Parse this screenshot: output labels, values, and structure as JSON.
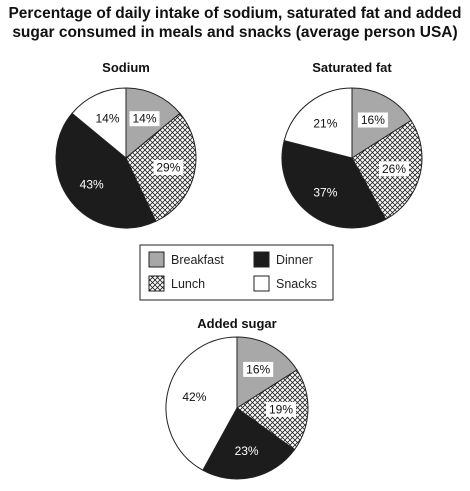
{
  "title_line1": "Percentage of daily intake of sodium, saturated fat and added",
  "title_line2": "sugar consumed in meals and snacks (average person USA)",
  "legend": [
    {
      "label": "Breakfast",
      "fill": "gray"
    },
    {
      "label": "Dinner",
      "fill": "black"
    },
    {
      "label": "Lunch",
      "fill": "hatch"
    },
    {
      "label": "Snacks",
      "fill": "white"
    }
  ],
  "colors": {
    "breakfast": "#a8a8a8",
    "dinner": "#1c1c1c",
    "lunch": "hatch",
    "snacks": "#ffffff",
    "outline": "#222222"
  },
  "chart_data": [
    {
      "type": "pie",
      "title": "Sodium",
      "categories": [
        "Breakfast",
        "Lunch",
        "Dinner",
        "Snacks"
      ],
      "values": [
        14,
        29,
        43,
        14
      ],
      "labels": [
        "14%",
        "29%",
        "43%",
        "14%"
      ]
    },
    {
      "type": "pie",
      "title": "Saturated fat",
      "categories": [
        "Breakfast",
        "Lunch",
        "Dinner",
        "Snacks"
      ],
      "values": [
        16,
        26,
        37,
        21
      ],
      "labels": [
        "16%",
        "26%",
        "37%",
        "21%"
      ]
    },
    {
      "type": "pie",
      "title": "Added sugar",
      "categories": [
        "Breakfast",
        "Lunch",
        "Dinner",
        "Snacks"
      ],
      "values": [
        16,
        19,
        23,
        42
      ],
      "labels": [
        "16%",
        "19%",
        "23%",
        "42%"
      ]
    }
  ]
}
